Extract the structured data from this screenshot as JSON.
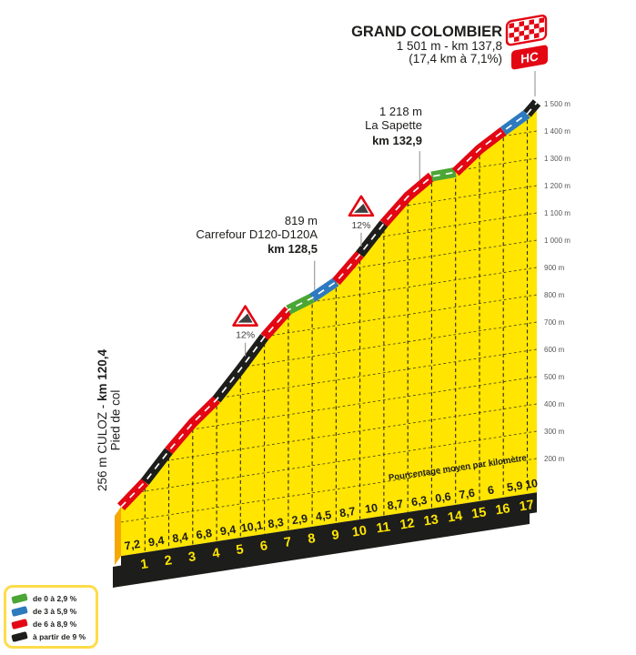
{
  "header": {
    "title": "GRAND COLOMBIER",
    "subtitle1": "1 501 m - km 137,8",
    "subtitle2": "(17,4 km à 7,1%)",
    "hc_label": "HC"
  },
  "start_label": {
    "line1_normal": "256 m CULOZ - ",
    "line1_bold": "km 120,4",
    "line2": "Pied de col"
  },
  "waypoints": [
    {
      "altitude": "819 m",
      "name": "Carrefour D120-D120A",
      "km_label": "km 128,5",
      "km_rel": 8.1
    },
    {
      "altitude": "1 218 m",
      "name": "La Sapette",
      "km_label": "km 132,9",
      "km_rel": 12.5
    }
  ],
  "steep_signs": [
    {
      "label": "12%",
      "km_rel": 5.2
    },
    {
      "label": "12%",
      "km_rel": 10.05
    }
  ],
  "axis_note": "Pourcentage moyen par kilomètre",
  "legend": {
    "items": [
      {
        "label": "de 0 à 2,9 %",
        "color": "#4ba635"
      },
      {
        "label": "de 3 à 5,9 %",
        "color": "#2d7abf"
      },
      {
        "label": "de 6 à 8,9 %",
        "color": "#e30613"
      },
      {
        "label": "à partir de 9 %",
        "color": "#1d1d1b"
      }
    ]
  },
  "chart_data": {
    "type": "area",
    "title": "GRAND COLOMBIER climb profile",
    "start_km": 120.4,
    "summit_km": 137.8,
    "length_km": 17.4,
    "avg_gradient_pct": 7.1,
    "start_elevation_m": 256,
    "summit_elevation_m": 1501,
    "hc_category": "HC",
    "segment_bounds_km": [
      0,
      1,
      2,
      3,
      4,
      5,
      6,
      7,
      8,
      9,
      10,
      11,
      12,
      13,
      14,
      15,
      16,
      17,
      17.4
    ],
    "gradients_pct": [
      7.2,
      9.4,
      8.4,
      6.8,
      9.4,
      10.1,
      8.3,
      2.9,
      4.5,
      8.7,
      10,
      8.7,
      6.3,
      0.6,
      7.6,
      6,
      5.9,
      10
    ],
    "gradient_labels": [
      "7,2",
      "9,4",
      "8,4",
      "6,8",
      "9,4",
      "10,1",
      "8,3",
      "2,9",
      "4,5",
      "8,7",
      "10",
      "8,7",
      "6,3",
      "0,6",
      "7,6",
      "6",
      "5,9",
      "10"
    ],
    "km_tick_labels": [
      "1",
      "2",
      "3",
      "4",
      "5",
      "6",
      "7",
      "8",
      "9",
      "10",
      "11",
      "12",
      "13",
      "14",
      "15",
      "16",
      "17"
    ],
    "y_ticks": [
      {
        "elev": 1500,
        "label": "1 500 m"
      },
      {
        "elev": 1400,
        "label": "1 400 m"
      },
      {
        "elev": 1300,
        "label": "1 300 m"
      },
      {
        "elev": 1200,
        "label": "1 200 m"
      },
      {
        "elev": 1100,
        "label": "1 100 m"
      },
      {
        "elev": 1000,
        "label": "1 000 m"
      },
      {
        "elev": 900,
        "label": "900 m"
      },
      {
        "elev": 800,
        "label": "800 m"
      },
      {
        "elev": 700,
        "label": "700 m"
      },
      {
        "elev": 600,
        "label": "600 m"
      },
      {
        "elev": 500,
        "label": "500 m"
      },
      {
        "elev": 400,
        "label": "400 m"
      },
      {
        "elev": 300,
        "label": "300 m"
      },
      {
        "elev": 200,
        "label": "200 m"
      }
    ],
    "gradient_color_scale": {
      "lt3": "#4ba635",
      "3to5_9": "#2d7abf",
      "6to8_9": "#e30613",
      "gte9": "#1d1d1b"
    },
    "colors": {
      "surface_yellow": "#ffe500",
      "side_orange": "#f6a800",
      "base_black": "#1d1d1b",
      "marker_line_gray": "#9d9d9c",
      "axis_text": "#575756",
      "text_dark": "#1d1d1b",
      "centerline_white": "#ffffff"
    }
  }
}
